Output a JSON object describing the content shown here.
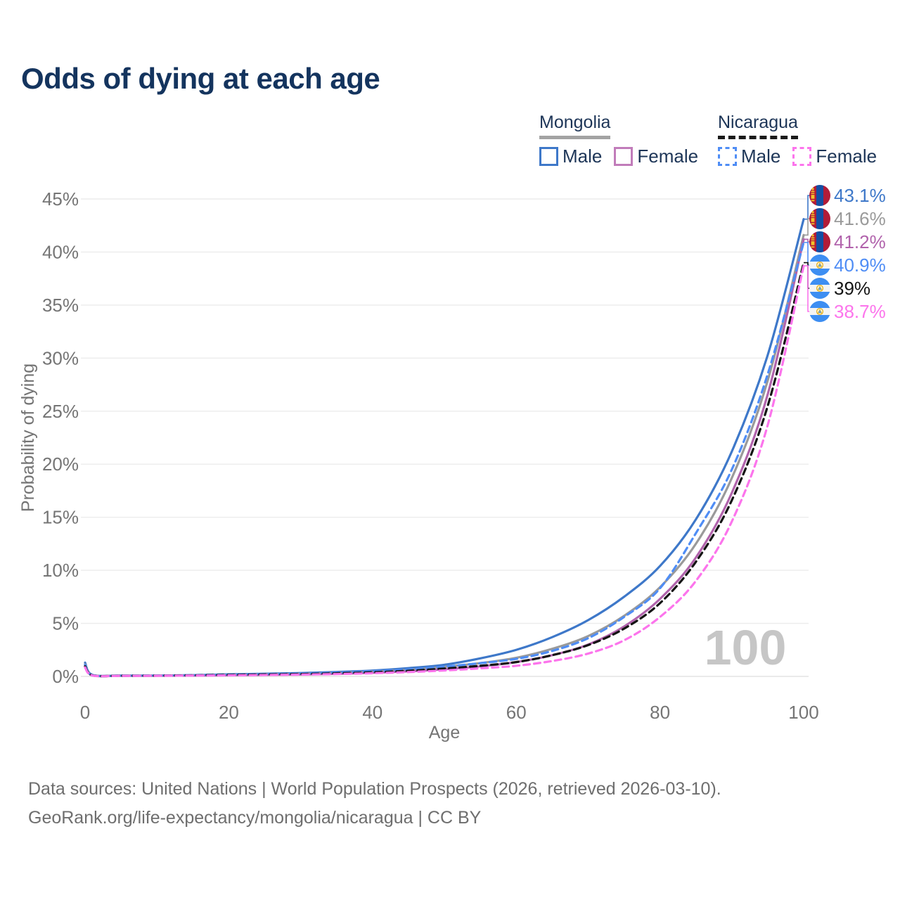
{
  "title": "Odds of dying at each age",
  "legend": {
    "groups": [
      {
        "name": "Mongolia",
        "underline_style": "solid",
        "underline_color": "#a3a3a3",
        "items": [
          {
            "label": "Male",
            "color": "#3e78c9",
            "dashed": false
          },
          {
            "label": "Female",
            "color": "#c17cba",
            "dashed": false
          }
        ]
      },
      {
        "name": "Nicaragua",
        "underline_style": "dashed",
        "underline_color": "#1a1a1a",
        "items": [
          {
            "label": "Male",
            "color": "#4f8df5",
            "dashed": true
          },
          {
            "label": "Female",
            "color": "#fc74ec",
            "dashed": true
          }
        ]
      }
    ]
  },
  "watermark": "100",
  "chart_data": {
    "type": "line",
    "title": "Odds of dying at each age",
    "xlabel": "Age",
    "ylabel": "Probability of dying",
    "xlim": [
      0,
      100
    ],
    "ylim": [
      0,
      45
    ],
    "xticks": [
      0,
      20,
      40,
      60,
      80,
      100
    ],
    "yticks_percent": [
      0,
      5,
      10,
      15,
      20,
      25,
      30,
      35,
      40,
      45
    ],
    "grid": true,
    "legend_position": "top-right",
    "ages": [
      0,
      1,
      5,
      10,
      15,
      20,
      25,
      30,
      35,
      40,
      45,
      50,
      55,
      60,
      65,
      70,
      75,
      80,
      85,
      90,
      95,
      100
    ],
    "series": [
      {
        "name": "Mongolia Male",
        "color": "#3e78c9",
        "dashed": false,
        "flag": "mongolia",
        "end_label": "43.1%",
        "end_value": 43.1,
        "values": [
          1.3,
          0.15,
          0.08,
          0.08,
          0.12,
          0.2,
          0.25,
          0.32,
          0.42,
          0.55,
          0.78,
          1.1,
          1.7,
          2.5,
          3.7,
          5.3,
          7.5,
          10.4,
          14.8,
          21.2,
          30.3,
          43.1
        ]
      },
      {
        "name": "Mongolia",
        "color": "#9a9a9a",
        "dashed": false,
        "flag": "mongolia",
        "end_label": "41.6%",
        "end_value": 41.6,
        "values": [
          1.15,
          0.12,
          0.07,
          0.07,
          0.1,
          0.15,
          0.19,
          0.25,
          0.33,
          0.45,
          0.62,
          0.9,
          1.25,
          1.75,
          2.6,
          3.8,
          5.7,
          8.4,
          12.5,
          18.7,
          27.9,
          41.6
        ]
      },
      {
        "name": "Mongolia Female",
        "color": "#b163ac",
        "dashed": false,
        "flag": "mongolia",
        "end_label": "41.2%",
        "end_value": 41.2,
        "values": [
          1.0,
          0.1,
          0.06,
          0.06,
          0.08,
          0.11,
          0.14,
          0.18,
          0.24,
          0.34,
          0.48,
          0.68,
          0.95,
          1.35,
          2.0,
          3.0,
          4.7,
          7.3,
          11.2,
          17.3,
          26.6,
          41.2
        ]
      },
      {
        "name": "Nicaragua Male",
        "color": "#4f8df5",
        "dashed": true,
        "flag": "nicaragua",
        "end_label": "40.9%",
        "end_value": 40.9,
        "values": [
          1.1,
          0.12,
          0.07,
          0.08,
          0.12,
          0.18,
          0.22,
          0.28,
          0.36,
          0.48,
          0.65,
          0.92,
          1.25,
          1.65,
          2.4,
          3.6,
          5.6,
          8.3,
          13.5,
          19.5,
          28.5,
          40.9
        ]
      },
      {
        "name": "Nicaragua",
        "color": "#141414",
        "dashed": true,
        "flag": "nicaragua",
        "end_label": "39%",
        "end_value": 39,
        "values": [
          0.95,
          0.1,
          0.06,
          0.07,
          0.1,
          0.14,
          0.18,
          0.22,
          0.29,
          0.39,
          0.53,
          0.74,
          1.0,
          1.35,
          2.0,
          2.95,
          4.5,
          6.9,
          10.8,
          16.6,
          25.5,
          39.0
        ]
      },
      {
        "name": "Nicaragua Female",
        "color": "#fc74ec",
        "dashed": true,
        "flag": "nicaragua",
        "end_label": "38.7%",
        "end_value": 38.7,
        "values": [
          0.85,
          0.09,
          0.05,
          0.06,
          0.08,
          0.1,
          0.13,
          0.17,
          0.22,
          0.3,
          0.41,
          0.56,
          0.76,
          1.0,
          1.45,
          2.15,
          3.4,
          5.6,
          9.0,
          14.6,
          23.7,
          38.7
        ]
      }
    ]
  },
  "flags": {
    "mongolia": {
      "red": "#b11c38",
      "blue": "#144fa4",
      "soyombo": "#f2c229"
    },
    "nicaragua": {
      "blue": "#3d8ef2",
      "white": "#f4f4f4",
      "gold": "#e8b21f",
      "triangle": "#5aa0e0"
    }
  },
  "footer": {
    "line1": "Data sources: United Nations | World Population Prospects (2026, retrieved 2026-03-10).",
    "line2": "GeoRank.org/life-expectancy/mongolia/nicaragua | CC BY"
  }
}
